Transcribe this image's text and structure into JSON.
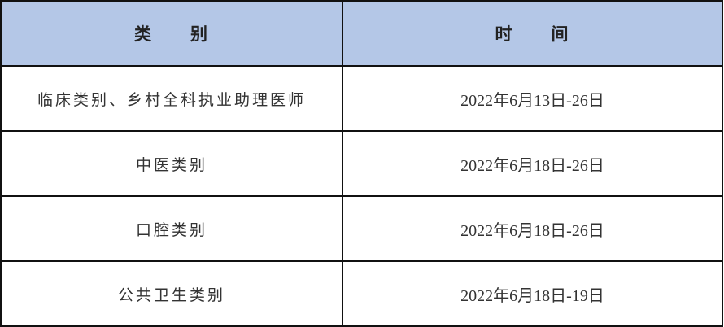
{
  "header": {
    "category": "类　　别",
    "time": "时　　间",
    "background_color": "#b4c7e7"
  },
  "rows": [
    {
      "category": "临床类别、乡村全科执业助理医师",
      "time": "2022年6月13日-26日"
    },
    {
      "category": "中医类别",
      "time": "2022年6月18日-26日"
    },
    {
      "category": "口腔类别",
      "time": "2022年6月18日-26日"
    },
    {
      "category": "公共卫生类别",
      "time": "2022年6月18日-19日"
    }
  ]
}
